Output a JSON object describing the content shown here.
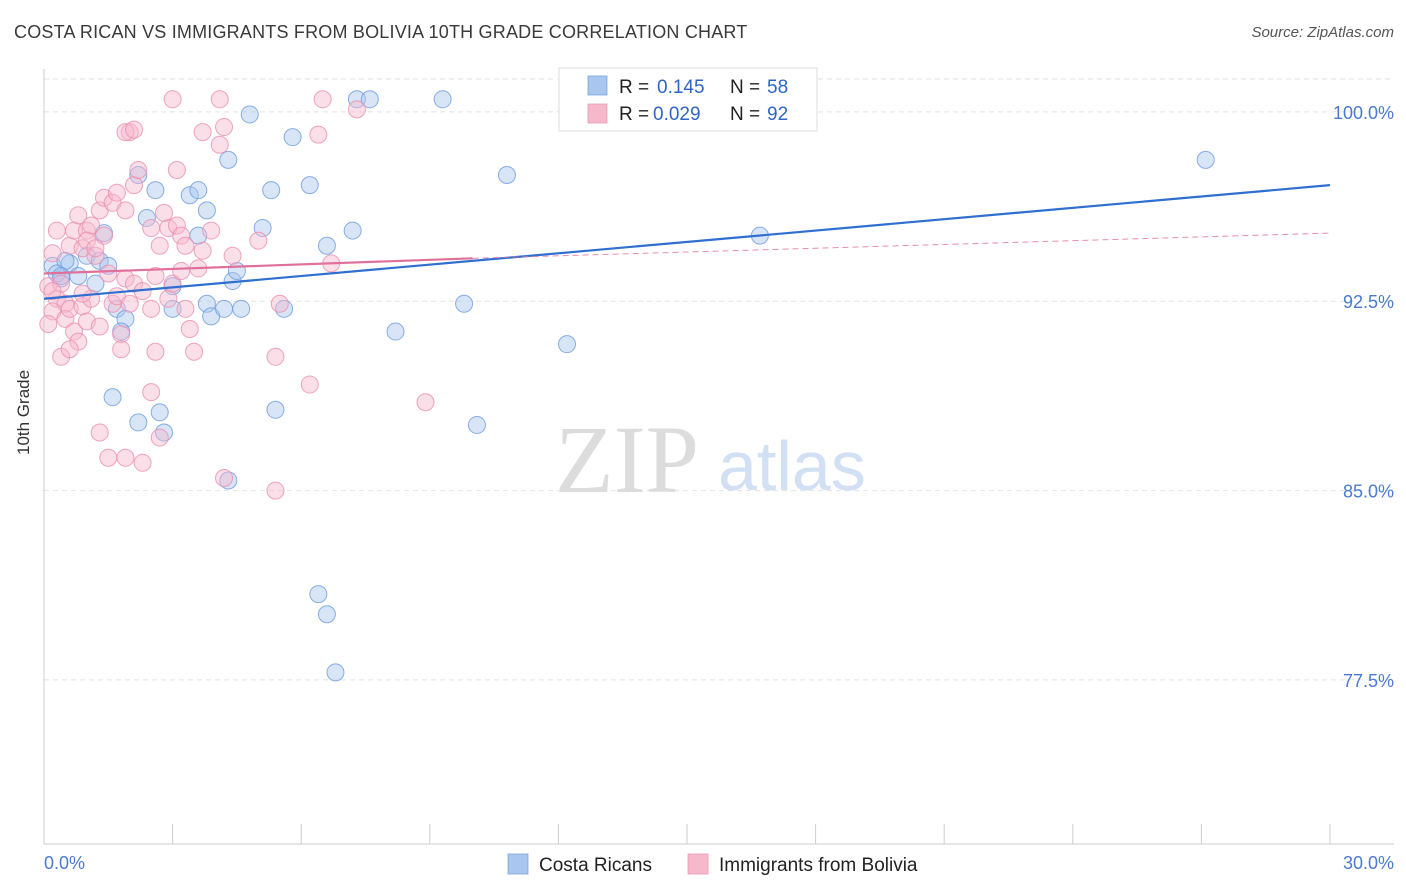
{
  "chart_data": {
    "type": "scatter",
    "title": "COSTA RICAN VS IMMIGRANTS FROM BOLIVIA 10TH GRADE CORRELATION CHART",
    "source": "Source: ZipAtlas.com",
    "xlabel": "",
    "ylabel": "10th Grade",
    "xlim": [
      0,
      30
    ],
    "ylim": [
      71,
      101.7
    ],
    "x_tick_labels": [
      "0.0%",
      "30.0%"
    ],
    "y_ticks": [
      77.5,
      85.0,
      92.5,
      100.0
    ],
    "y_tick_labels": [
      "77.5%",
      "85.0%",
      "92.5%",
      "100.0%"
    ],
    "grid": true,
    "watermark": {
      "zip": "ZIP",
      "atlas": "atlas"
    },
    "legend": {
      "items": [
        {
          "name": "Costa Ricans",
          "r_label": "R =",
          "r": "0.145",
          "n_label": "N =",
          "n": "58",
          "color": "#a9c6ee"
        },
        {
          "name": "Immigrants from Bolivia",
          "r_label": "R =",
          "r": "0.029",
          "n_label": "N =",
          "n": "92",
          "color": "#f6b8cb"
        }
      ]
    },
    "series": [
      {
        "name": "Costa Ricans",
        "color": "#a9c6ee",
        "stroke": "#6b9be0",
        "trend": {
          "x0": 0,
          "y0": 92.6,
          "x1": 30,
          "y1": 97.1,
          "color": "#2f6fd0",
          "dashed_from": null
        },
        "points": [
          [
            0.2,
            93.9
          ],
          [
            0.4,
            93.4
          ],
          [
            0.6,
            94.0
          ],
          [
            0.8,
            93.5
          ],
          [
            1.0,
            94.3
          ],
          [
            0.5,
            94.1
          ],
          [
            0.3,
            93.6
          ],
          [
            1.3,
            94.1
          ],
          [
            1.2,
            93.2
          ],
          [
            1.4,
            95.2
          ],
          [
            1.7,
            92.2
          ],
          [
            1.9,
            91.8
          ],
          [
            1.8,
            91.3
          ],
          [
            2.2,
            97.5
          ],
          [
            2.6,
            96.9
          ],
          [
            2.4,
            95.8
          ],
          [
            3.0,
            93.1
          ],
          [
            3.4,
            96.7
          ],
          [
            3.6,
            96.9
          ],
          [
            3.6,
            95.1
          ],
          [
            3.8,
            96.1
          ],
          [
            3.8,
            92.4
          ],
          [
            3.0,
            92.2
          ],
          [
            3.9,
            91.9
          ],
          [
            4.2,
            92.2
          ],
          [
            4.4,
            93.3
          ],
          [
            4.5,
            93.7
          ],
          [
            4.6,
            92.2
          ],
          [
            4.3,
            98.1
          ],
          [
            4.8,
            99.9
          ],
          [
            5.1,
            95.4
          ],
          [
            5.3,
            96.9
          ],
          [
            5.6,
            92.2
          ],
          [
            5.8,
            99.0
          ],
          [
            6.2,
            97.1
          ],
          [
            6.6,
            94.7
          ],
          [
            7.2,
            95.3
          ],
          [
            7.3,
            100.5
          ],
          [
            7.6,
            100.5
          ],
          [
            8.2,
            91.3
          ],
          [
            9.3,
            100.5
          ],
          [
            9.8,
            92.4
          ],
          [
            10.1,
            87.6
          ],
          [
            10.8,
            97.5
          ],
          [
            12.2,
            90.8
          ],
          [
            16.7,
            95.1
          ],
          [
            27.1,
            98.1
          ],
          [
            1.6,
            88.7
          ],
          [
            2.2,
            87.7
          ],
          [
            2.8,
            87.3
          ],
          [
            2.7,
            88.1
          ],
          [
            4.3,
            85.4
          ],
          [
            5.4,
            88.2
          ],
          [
            6.4,
            80.9
          ],
          [
            6.6,
            80.1
          ],
          [
            6.8,
            77.8
          ],
          [
            0.4,
            93.5
          ],
          [
            1.5,
            93.9
          ]
        ]
      },
      {
        "name": "Immigrants from Bolivia",
        "color": "#f6b8cb",
        "stroke": "#ea8fae",
        "trend": {
          "x0": 0,
          "y0": 93.6,
          "x1": 10,
          "y1": 94.2,
          "x2": 30,
          "y2": 95.2,
          "color": "#e0709a",
          "dashed_from": 10
        },
        "points": [
          [
            0.1,
            93.1
          ],
          [
            0.2,
            94.4
          ],
          [
            0.3,
            92.6
          ],
          [
            0.4,
            93.2
          ],
          [
            0.5,
            92.4
          ],
          [
            0.2,
            92.1
          ],
          [
            0.1,
            91.6
          ],
          [
            0.3,
            95.3
          ],
          [
            0.6,
            94.7
          ],
          [
            0.7,
            95.3
          ],
          [
            0.8,
            95.9
          ],
          [
            0.9,
            94.6
          ],
          [
            1.0,
            95.3
          ],
          [
            1.1,
            95.5
          ],
          [
            1.2,
            94.3
          ],
          [
            1.3,
            96.1
          ],
          [
            1.4,
            96.6
          ],
          [
            1.6,
            96.4
          ],
          [
            1.7,
            96.8
          ],
          [
            1.9,
            96.1
          ],
          [
            2.1,
            97.1
          ],
          [
            2.2,
            97.7
          ],
          [
            2.5,
            95.4
          ],
          [
            2.7,
            94.7
          ],
          [
            2.9,
            95.4
          ],
          [
            3.1,
            95.5
          ],
          [
            3.2,
            95.1
          ],
          [
            3.1,
            97.7
          ],
          [
            3.3,
            94.7
          ],
          [
            3.6,
            93.8
          ],
          [
            0.2,
            92.9
          ],
          [
            0.5,
            91.8
          ],
          [
            0.6,
            92.2
          ],
          [
            0.7,
            91.3
          ],
          [
            0.8,
            90.9
          ],
          [
            0.9,
            92.3
          ],
          [
            1.0,
            91.7
          ],
          [
            1.1,
            92.6
          ],
          [
            1.3,
            91.5
          ],
          [
            1.5,
            93.6
          ],
          [
            1.6,
            92.4
          ],
          [
            1.7,
            92.7
          ],
          [
            1.8,
            91.2
          ],
          [
            1.9,
            93.4
          ],
          [
            2.0,
            92.4
          ],
          [
            2.1,
            93.2
          ],
          [
            2.3,
            92.9
          ],
          [
            2.5,
            92.2
          ],
          [
            2.6,
            93.5
          ],
          [
            2.9,
            92.6
          ],
          [
            3.0,
            93.2
          ],
          [
            3.2,
            93.7
          ],
          [
            3.3,
            92.2
          ],
          [
            3.4,
            91.4
          ],
          [
            3.5,
            90.5
          ],
          [
            3.7,
            94.5
          ],
          [
            0.4,
            90.3
          ],
          [
            0.6,
            90.6
          ],
          [
            0.9,
            92.8
          ],
          [
            1.3,
            87.3
          ],
          [
            1.5,
            86.3
          ],
          [
            1.8,
            90.6
          ],
          [
            1.9,
            86.3
          ],
          [
            2.3,
            86.1
          ],
          [
            2.5,
            88.9
          ],
          [
            2.6,
            90.5
          ],
          [
            2.7,
            87.1
          ],
          [
            4.1,
            98.7
          ],
          [
            4.4,
            94.3
          ],
          [
            5.0,
            94.9
          ],
          [
            5.4,
            85.0
          ],
          [
            5.4,
            90.3
          ],
          [
            5.5,
            92.4
          ],
          [
            6.2,
            89.2
          ],
          [
            6.4,
            99.1
          ],
          [
            6.7,
            94.0
          ],
          [
            7.3,
            100.1
          ],
          [
            8.9,
            88.5
          ],
          [
            4.2,
            85.5
          ],
          [
            3.0,
            100.5
          ],
          [
            4.1,
            100.5
          ],
          [
            6.5,
            100.5
          ],
          [
            2.0,
            99.2
          ],
          [
            1.9,
            99.2
          ],
          [
            2.1,
            99.3
          ],
          [
            3.7,
            99.2
          ],
          [
            4.2,
            99.4
          ],
          [
            1.4,
            95.1
          ],
          [
            1.0,
            94.9
          ],
          [
            1.2,
            94.6
          ],
          [
            2.8,
            96.0
          ],
          [
            3.9,
            95.3
          ]
        ]
      }
    ]
  }
}
